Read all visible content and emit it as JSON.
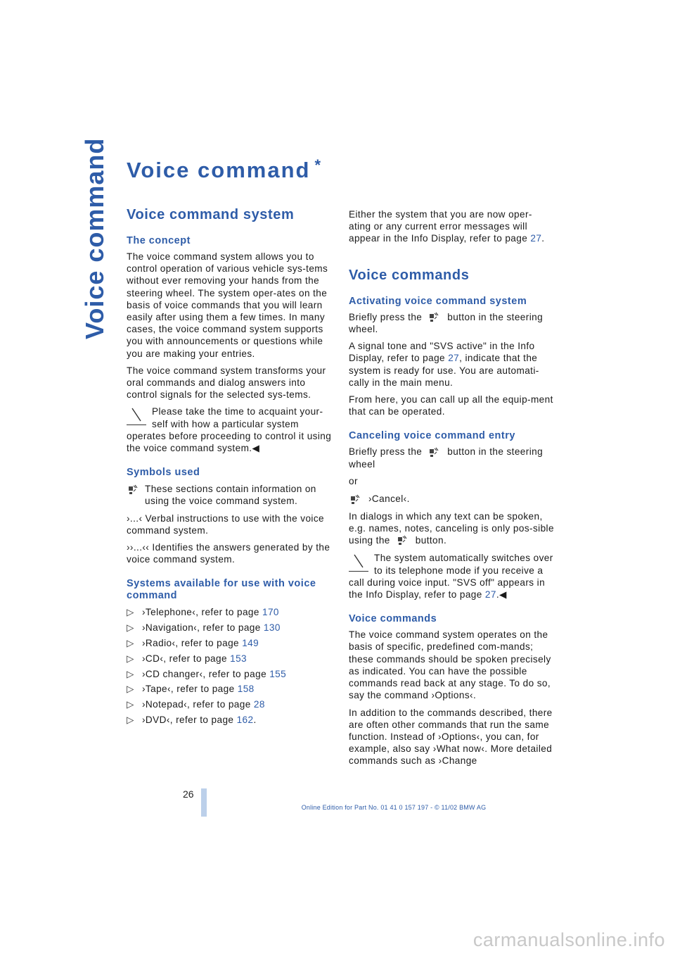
{
  "side_tab": "Voice command",
  "title": "Voice command",
  "title_star": "*",
  "left": {
    "h_system": "Voice command system",
    "h_concept": "The concept",
    "p_concept1": "The voice command system allows you to control operation of various vehicle sys-tems without ever removing your hands from the steering wheel. The system oper-ates on the basis of voice commands that you will learn easily after using them a few times. In many cases, the voice command system supports you with announcements or questions while you are making your entries.",
    "p_concept2": "The voice command system transforms your oral commands and dialog answers into control signals for the selected sys-tems.",
    "note1": "Please take the time to acquaint your-self with how a particular system operates before proceeding to control it using the voice command system.",
    "note_end": "◀",
    "h_symbols": "Symbols used",
    "symbols_mic_text": "These sections contain information on using the voice command system.",
    "symbols_verbal": "›...‹ Verbal instructions to use with the voice command system.",
    "symbols_answers": "››...‹‹ Identifies the answers generated by the voice command system.",
    "h_available": "Systems available for use with voice command",
    "systems": [
      {
        "text": "›Telephone‹, refer to page ",
        "page": "170"
      },
      {
        "text": "›Navigation‹, refer to page ",
        "page": "130"
      },
      {
        "text": "›Radio‹, refer to page ",
        "page": "149"
      },
      {
        "text": "›CD‹, refer to page ",
        "page": "153"
      },
      {
        "text": "›CD changer‹, refer to page ",
        "page": "155"
      },
      {
        "text": "›Tape‹, refer to page ",
        "page": "158"
      },
      {
        "text": "›Notepad‹, refer to page ",
        "page": "28"
      },
      {
        "text": "›DVD‹, refer to page ",
        "page": "162"
      }
    ],
    "bullet": "▷"
  },
  "right": {
    "p_either": "Either the system that you are now oper-ating or any current error messages will appear in the Info Display, refer to page ",
    "p_either_page": "27",
    "h_commands": "Voice commands",
    "h_activating": "Activating voice command system",
    "p_briefly1_a": "Briefly press the",
    "p_briefly1_b": "button in the steering wheel.",
    "p_signal_a": "A signal tone and \"SVS active\" in the Info Display, refer to page ",
    "p_signal_page": "27",
    "p_signal_b": ", indicate that the system is ready for use. You are automati-cally in the main menu.",
    "p_from_here": "From here, you can call up all the equip-ment that can be operated.",
    "h_canceling": "Canceling voice command entry",
    "p_briefly2_a": "Briefly press the",
    "p_briefly2_b": "button in the steering wheel",
    "p_or": "or",
    "p_cancel": "›Cancel‹.",
    "p_dialogs_a": "In dialogs in which any text can be spoken, e.g. names, notes, canceling is only pos-sible using the",
    "p_dialogs_b": "button.",
    "note2": "The system automatically switches over to its telephone mode if you receive a call during voice input. \"SVS off\" appears in the Info Display, refer to page ",
    "note2_page": "27",
    "h_voice_commands": "Voice commands",
    "p_operates": "The voice command system operates on the basis of specific, predefined com-mands; these commands should be spoken precisely as indicated. You can have the possible commands read back at any stage. To do so, say the command ›Options‹.",
    "p_addition": "In addition to the commands described, there are often other commands that run the same function. Instead of ›Options‹, you can, for example, also say ›What now‹. More detailed commands such as ›Change"
  },
  "page_number": "26",
  "footer": "Online Edition for Part No. 01 41 0 157 197 - © 11/02 BMW AG",
  "watermark": "carmanualsonline.info"
}
